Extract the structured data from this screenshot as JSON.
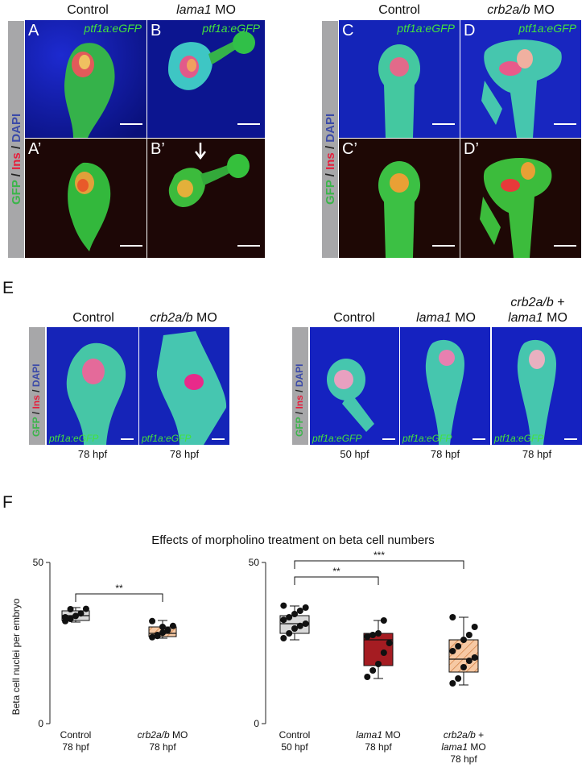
{
  "panel_letters": {
    "E": "E",
    "F": "F"
  },
  "top_left": {
    "col1": "Control",
    "col2_italic": "lama1",
    "col2_rest": " MO",
    "A": "A",
    "B": "B",
    "A2": "A’",
    "B2": "B’",
    "marker": "ptf1a:eGFP"
  },
  "top_right": {
    "col1": "Control",
    "col2_italic": "crb2a/b",
    "col2_rest": " MO",
    "C": "C",
    "D": "D",
    "C2": "C’",
    "D2": "D’",
    "marker": "ptf1a:eGFP"
  },
  "stain_label": {
    "gfp": "GFP",
    "sep1": " / ",
    "ins": "Ins",
    "sep2": " / ",
    "dapi": "DAPI"
  },
  "row_e": {
    "left_col1": "Control",
    "left_col2_italic": "crb2a/b",
    "left_col2_rest": " MO",
    "right_col1": "Control",
    "right_col2_italic": "lama1",
    "right_col2_rest": " MO",
    "right_col3_line1_italic": "crb2a/b",
    "right_col3_line1_rest": " +",
    "right_col3_line2_italic": "lama1",
    "right_col3_line2_rest": " MO",
    "marker": "ptf1a:eGFP",
    "times": [
      "78 hpf",
      "78 hpf",
      "50 hpf",
      "78 hpf",
      "78 hpf"
    ]
  },
  "chart_data": [
    {
      "type": "box",
      "title": "Effects of morpholino treatment on beta cell numbers",
      "ylabel": "Beta cell nuclei per embryo",
      "ylim": [
        0,
        50
      ],
      "yticks": [
        0,
        50
      ],
      "categories": [
        {
          "line1": "Control",
          "line1_italic": "",
          "line2": "78 hpf",
          "line3": "",
          "fill": "#d9d9d9",
          "hatch": false
        },
        {
          "line1": " MO",
          "line1_italic": "crb2a/b",
          "line2": "78 hpf",
          "line3": "",
          "fill": "#f6c9a4",
          "hatch": true
        }
      ],
      "boxes": [
        {
          "min": 31.5,
          "q1": 32,
          "median": 33.5,
          "q3": 35,
          "max": 36
        },
        {
          "min": 26.5,
          "q1": 27,
          "median": 28,
          "q3": 30,
          "max": 32
        }
      ],
      "points": [
        [
          31.8,
          32.5,
          33.4,
          34.2,
          35.6,
          33.0,
          35.5
        ],
        [
          26.8,
          27.5,
          28.2,
          29.0,
          30.3,
          31.8,
          27.2,
          30.0
        ]
      ],
      "significance": [
        {
          "from": 0,
          "to": 1,
          "label": "**"
        }
      ]
    },
    {
      "type": "box",
      "ylim": [
        0,
        50
      ],
      "yticks": [
        0,
        50
      ],
      "categories": [
        {
          "line1": "Control",
          "line1_italic": "",
          "line2": "50 hpf",
          "line3": "",
          "fill": "#d9d9d9",
          "hatch": false
        },
        {
          "line1": " MO",
          "line1_italic": "lama1",
          "line2": "78 hpf",
          "line3": "",
          "fill": "#a51c22",
          "hatch": false
        },
        {
          "line1": " +",
          "line1_italic": "crb2a/b",
          "line2": "lama1 MO",
          "line3": "78 hpf",
          "fill": "#f6c9a4",
          "hatch": true
        }
      ],
      "boxes": [
        {
          "min": 26,
          "q1": 28,
          "median": 31,
          "q3": 33.5,
          "max": 36.5
        },
        {
          "min": 14,
          "q1": 18,
          "median": 26,
          "q3": 28,
          "max": 32
        },
        {
          "min": 12,
          "q1": 16,
          "median": 20,
          "q3": 26,
          "max": 33
        }
      ],
      "points": [
        [
          26.5,
          28,
          29.5,
          30.3,
          31,
          32.2,
          33,
          34,
          35,
          36,
          36.6
        ],
        [
          14.5,
          16.5,
          18.5,
          22,
          25,
          27,
          27.5,
          28,
          32
        ],
        [
          12.5,
          14,
          17.5,
          19.5,
          20.5,
          22.5,
          24,
          26,
          27.5,
          30,
          33
        ]
      ],
      "significance": [
        {
          "from": 0,
          "to": 1,
          "label": "**"
        },
        {
          "from": 0,
          "to": 2,
          "label": "***"
        }
      ]
    }
  ]
}
